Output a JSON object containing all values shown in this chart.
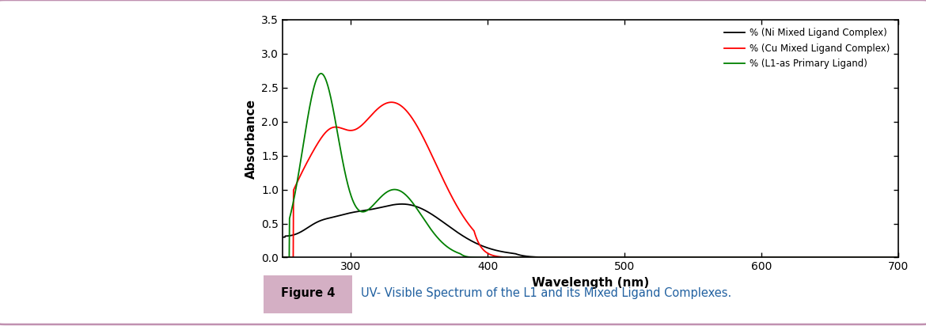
{
  "title": "",
  "xlabel": "Wavelength (nm)",
  "ylabel": "Absorbance",
  "xlim": [
    250,
    700
  ],
  "ylim": [
    0.0,
    3.5
  ],
  "xticks": [
    300,
    400,
    500,
    600,
    700
  ],
  "yticks": [
    0.0,
    0.5,
    1.0,
    1.5,
    2.0,
    2.5,
    3.0,
    3.5
  ],
  "legend_labels": [
    "% (Ni Mixed Ligand Complex)",
    "% (Cu Mixed Ligand Complex)",
    "% (L1-as Primary Ligand)"
  ],
  "line_colors": [
    "black",
    "red",
    "green"
  ],
  "figure_caption": "UV- Visible Spectrum of the L1 and its Mixed Ligand Complexes.",
  "figure_label": "Figure 4",
  "caption_color": "#2060a0",
  "background_color": "#ffffff",
  "figure_bg_color": "#d4afc4",
  "border_color": "#c090b0"
}
